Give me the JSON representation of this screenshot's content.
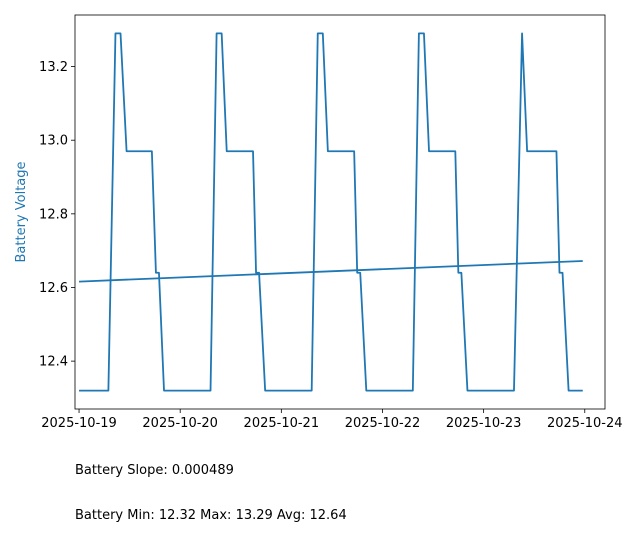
{
  "chart_data": {
    "type": "line",
    "title": "",
    "xlabel": "",
    "ylabel": "Battery Voltage",
    "ylabel_color": "#1f77b4",
    "line_color": "#1f77b4",
    "xlim": [
      -0.04,
      5.2
    ],
    "ylim": [
      12.27,
      13.34
    ],
    "grid": false,
    "legend": "none",
    "x_ticks": [
      {
        "value": 0,
        "label": "2025-10-19"
      },
      {
        "value": 1,
        "label": "2025-10-20"
      },
      {
        "value": 2,
        "label": "2025-10-21"
      },
      {
        "value": 3,
        "label": "2025-10-22"
      },
      {
        "value": 4,
        "label": "2025-10-23"
      },
      {
        "value": 5,
        "label": "2025-10-24"
      }
    ],
    "y_ticks": [
      {
        "value": 12.4,
        "label": "12.4"
      },
      {
        "value": 12.6,
        "label": "12.6"
      },
      {
        "value": 12.8,
        "label": "12.8"
      },
      {
        "value": 13.0,
        "label": "13.0"
      },
      {
        "value": 13.2,
        "label": "13.2"
      }
    ],
    "series": [
      {
        "x": [
          0,
          0.29,
          0.36,
          0.37,
          0.41,
          0.47,
          0.72,
          0.76,
          0.79,
          0.84,
          1.3,
          1.36,
          1.37,
          1.41,
          1.46,
          1.72,
          1.75,
          1.78,
          1.84,
          2.3,
          2.36,
          2.37,
          2.41,
          2.46,
          2.72,
          2.75,
          2.78,
          2.84,
          3.3,
          3.36,
          3.37,
          3.41,
          3.46,
          3.72,
          3.75,
          3.78,
          3.84,
          4.3,
          4.38,
          4.43,
          4.72,
          4.75,
          4.78,
          4.84,
          4.98
        ],
        "y": [
          12.32,
          12.32,
          13.29,
          13.29,
          13.29,
          12.97,
          12.97,
          12.64,
          12.64,
          12.32,
          12.32,
          13.29,
          13.29,
          13.29,
          12.97,
          12.97,
          12.64,
          12.64,
          12.32,
          12.32,
          13.29,
          13.29,
          13.29,
          12.97,
          12.97,
          12.64,
          12.64,
          12.32,
          12.32,
          13.29,
          13.29,
          13.29,
          12.97,
          12.97,
          12.64,
          12.64,
          12.32,
          12.32,
          13.29,
          12.97,
          12.97,
          12.64,
          12.64,
          12.32,
          12.32
        ]
      },
      {
        "x": [
          0,
          4.98
        ],
        "y": [
          12.616,
          12.672
        ]
      }
    ]
  },
  "stats": {
    "slope_line": "Battery Slope: 0.000489",
    "minmax_line": "Battery Min: 12.32 Max: 13.29 Avg: 12.64"
  }
}
